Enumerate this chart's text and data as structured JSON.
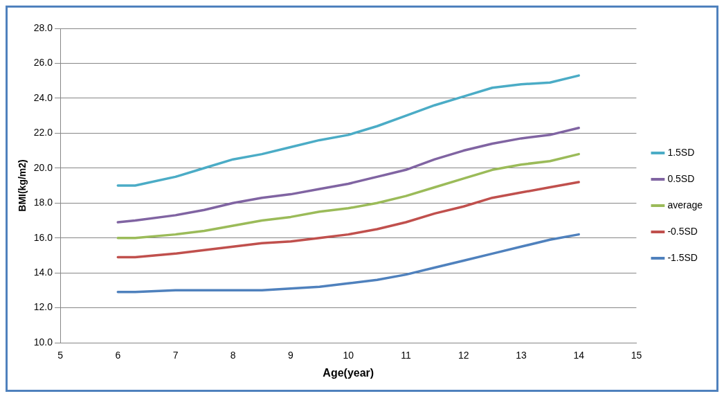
{
  "chart_data": {
    "type": "line",
    "xlabel": "Age(year)",
    "ylabel": "BMI(kg/m2)",
    "x": [
      6,
      6.3,
      7,
      7.5,
      8,
      8.5,
      9,
      9.5,
      10,
      10.5,
      11,
      11.5,
      12,
      12.5,
      13,
      13.5,
      14
    ],
    "series": [
      {
        "name": "1.5SD",
        "color": "#4bacc6",
        "values": [
          19.0,
          19.0,
          19.5,
          20.0,
          20.5,
          20.8,
          21.2,
          21.6,
          21.9,
          22.4,
          23.0,
          23.6,
          24.1,
          24.6,
          24.8,
          24.9,
          25.3
        ]
      },
      {
        "name": "0.5SD",
        "color": "#8064a2",
        "values": [
          16.9,
          17.0,
          17.3,
          17.6,
          18.0,
          18.3,
          18.5,
          18.8,
          19.1,
          19.5,
          19.9,
          20.5,
          21.0,
          21.4,
          21.7,
          21.9,
          22.3
        ]
      },
      {
        "name": "average",
        "color": "#9bbb59",
        "values": [
          16.0,
          16.0,
          16.2,
          16.4,
          16.7,
          17.0,
          17.2,
          17.5,
          17.7,
          18.0,
          18.4,
          18.9,
          19.4,
          19.9,
          20.2,
          20.4,
          20.8
        ]
      },
      {
        "name": "-0.5SD",
        "color": "#c0504d",
        "values": [
          14.9,
          14.9,
          15.1,
          15.3,
          15.5,
          15.7,
          15.8,
          16.0,
          16.2,
          16.5,
          16.9,
          17.4,
          17.8,
          18.3,
          18.6,
          18.9,
          19.2
        ]
      },
      {
        "name": "-1.5SD",
        "color": "#4f81bd",
        "values": [
          12.9,
          12.9,
          13.0,
          13.0,
          13.0,
          13.0,
          13.1,
          13.2,
          13.4,
          13.6,
          13.9,
          14.3,
          14.7,
          15.1,
          15.5,
          15.9,
          16.2
        ]
      }
    ],
    "xlim": [
      5,
      15
    ],
    "xticks": [
      5,
      6,
      7,
      8,
      9,
      10,
      11,
      12,
      13,
      14,
      15
    ],
    "ylim": [
      10,
      28
    ],
    "yticks": [
      {
        "value": 10,
        "label": "10.0"
      },
      {
        "value": 12,
        "label": "12.0"
      },
      {
        "value": 14,
        "label": "14.0"
      },
      {
        "value": 16,
        "label": "16.0"
      },
      {
        "value": 18,
        "label": "18.0"
      },
      {
        "value": 20,
        "label": "20.0"
      },
      {
        "value": 22,
        "label": "22.0"
      },
      {
        "value": 24,
        "label": "24.0"
      },
      {
        "value": 26,
        "label": "26.0"
      },
      {
        "value": 28,
        "label": "28.0"
      }
    ],
    "grid": "y",
    "legend": "right",
    "marker": "none",
    "line_style": "solid"
  }
}
